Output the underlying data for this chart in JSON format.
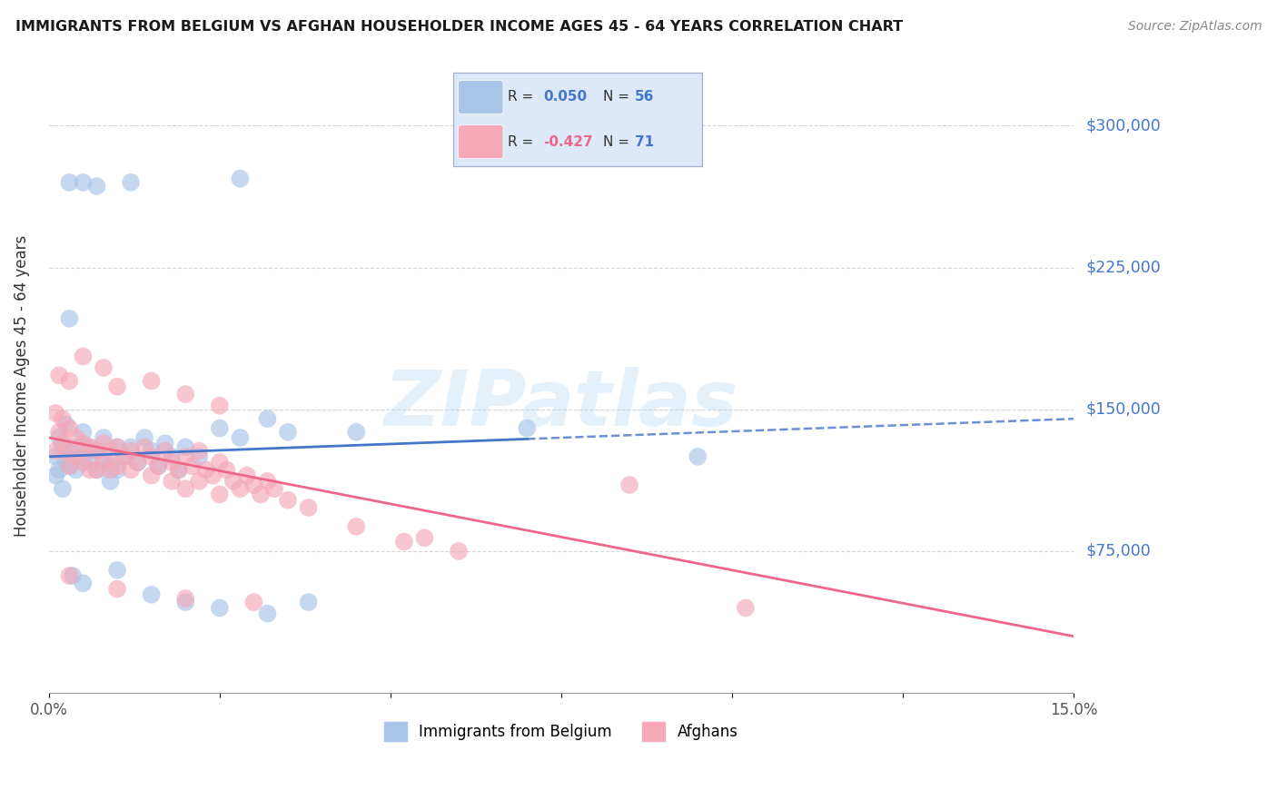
{
  "title": "IMMIGRANTS FROM BELGIUM VS AFGHAN HOUSEHOLDER INCOME AGES 45 - 64 YEARS CORRELATION CHART",
  "source": "Source: ZipAtlas.com",
  "ylabel": "Householder Income Ages 45 - 64 years",
  "xlim": [
    0.0,
    15.0
  ],
  "ylim": [
    0,
    325000
  ],
  "yticks": [
    0,
    75000,
    150000,
    225000,
    300000
  ],
  "ytick_labels": [
    "",
    "$75,000",
    "$150,000",
    "$225,000",
    "$300,000"
  ],
  "xticks": [
    0.0,
    2.5,
    5.0,
    7.5,
    10.0,
    12.5,
    15.0
  ],
  "xtick_labels": [
    "0.0%",
    "",
    "",
    "",
    "",
    "",
    "15.0%"
  ],
  "belgium_R": 0.05,
  "belgium_N": 56,
  "afghan_R": -0.427,
  "afghan_N": 71,
  "belgium_color": "#a8c4e8",
  "afghan_color": "#f4a8b8",
  "belgium_line_color": "#4477cc",
  "afghan_line_color": "#ee6688",
  "watermark_text": "ZIPatlas",
  "belgium_scatter": [
    [
      0.1,
      125000
    ],
    [
      0.15,
      118000
    ],
    [
      0.2,
      130000
    ],
    [
      0.25,
      122000
    ],
    [
      0.3,
      128000
    ],
    [
      0.1,
      115000
    ],
    [
      0.2,
      108000
    ],
    [
      0.3,
      120000
    ],
    [
      0.15,
      135000
    ],
    [
      0.25,
      142000
    ],
    [
      0.4,
      130000
    ],
    [
      0.5,
      125000
    ],
    [
      0.4,
      118000
    ],
    [
      0.5,
      138000
    ],
    [
      0.6,
      130000
    ],
    [
      0.6,
      122000
    ],
    [
      0.7,
      128000
    ],
    [
      0.8,
      135000
    ],
    [
      0.7,
      118000
    ],
    [
      0.8,
      125000
    ],
    [
      0.9,
      120000
    ],
    [
      1.0,
      130000
    ],
    [
      0.9,
      112000
    ],
    [
      1.1,
      125000
    ],
    [
      1.0,
      118000
    ],
    [
      1.2,
      130000
    ],
    [
      1.3,
      122000
    ],
    [
      1.4,
      135000
    ],
    [
      1.5,
      128000
    ],
    [
      1.6,
      120000
    ],
    [
      1.7,
      132000
    ],
    [
      1.8,
      125000
    ],
    [
      1.9,
      118000
    ],
    [
      2.0,
      130000
    ],
    [
      2.2,
      125000
    ],
    [
      2.5,
      140000
    ],
    [
      2.8,
      135000
    ],
    [
      3.2,
      145000
    ],
    [
      3.5,
      138000
    ],
    [
      0.3,
      270000
    ],
    [
      0.5,
      270000
    ],
    [
      0.7,
      268000
    ],
    [
      1.2,
      270000
    ],
    [
      2.8,
      272000
    ],
    [
      0.3,
      198000
    ],
    [
      0.35,
      62000
    ],
    [
      0.5,
      58000
    ],
    [
      1.0,
      65000
    ],
    [
      1.5,
      52000
    ],
    [
      2.0,
      48000
    ],
    [
      2.5,
      45000
    ],
    [
      3.8,
      48000
    ],
    [
      3.2,
      42000
    ],
    [
      4.5,
      138000
    ],
    [
      7.0,
      140000
    ],
    [
      9.5,
      125000
    ]
  ],
  "afghan_scatter": [
    [
      0.1,
      148000
    ],
    [
      0.15,
      138000
    ],
    [
      0.2,
      145000
    ],
    [
      0.1,
      128000
    ],
    [
      0.2,
      132000
    ],
    [
      0.3,
      140000
    ],
    [
      0.25,
      128000
    ],
    [
      0.3,
      120000
    ],
    [
      0.4,
      135000
    ],
    [
      0.4,
      125000
    ],
    [
      0.5,
      132000
    ],
    [
      0.5,
      122000
    ],
    [
      0.6,
      130000
    ],
    [
      0.6,
      118000
    ],
    [
      0.7,
      128000
    ],
    [
      0.7,
      118000
    ],
    [
      0.8,
      132000
    ],
    [
      0.8,
      122000
    ],
    [
      0.9,
      128000
    ],
    [
      0.9,
      118000
    ],
    [
      1.0,
      130000
    ],
    [
      1.0,
      120000
    ],
    [
      1.1,
      125000
    ],
    [
      1.2,
      128000
    ],
    [
      1.2,
      118000
    ],
    [
      1.3,
      122000
    ],
    [
      1.4,
      130000
    ],
    [
      1.5,
      125000
    ],
    [
      1.5,
      115000
    ],
    [
      1.6,
      120000
    ],
    [
      1.7,
      128000
    ],
    [
      1.8,
      122000
    ],
    [
      1.8,
      112000
    ],
    [
      1.9,
      118000
    ],
    [
      2.0,
      125000
    ],
    [
      2.0,
      108000
    ],
    [
      2.1,
      120000
    ],
    [
      2.2,
      128000
    ],
    [
      2.2,
      112000
    ],
    [
      2.3,
      118000
    ],
    [
      2.4,
      115000
    ],
    [
      2.5,
      122000
    ],
    [
      2.5,
      105000
    ],
    [
      2.6,
      118000
    ],
    [
      2.7,
      112000
    ],
    [
      2.8,
      108000
    ],
    [
      2.9,
      115000
    ],
    [
      3.0,
      110000
    ],
    [
      3.1,
      105000
    ],
    [
      3.2,
      112000
    ],
    [
      3.3,
      108000
    ],
    [
      3.5,
      102000
    ],
    [
      3.8,
      98000
    ],
    [
      0.15,
      168000
    ],
    [
      0.3,
      165000
    ],
    [
      0.5,
      178000
    ],
    [
      0.8,
      172000
    ],
    [
      1.0,
      162000
    ],
    [
      1.5,
      165000
    ],
    [
      2.0,
      158000
    ],
    [
      2.5,
      152000
    ],
    [
      0.3,
      62000
    ],
    [
      1.0,
      55000
    ],
    [
      2.0,
      50000
    ],
    [
      3.0,
      48000
    ],
    [
      4.5,
      88000
    ],
    [
      5.2,
      80000
    ],
    [
      5.5,
      82000
    ],
    [
      6.0,
      75000
    ],
    [
      8.5,
      110000
    ],
    [
      10.2,
      45000
    ]
  ]
}
